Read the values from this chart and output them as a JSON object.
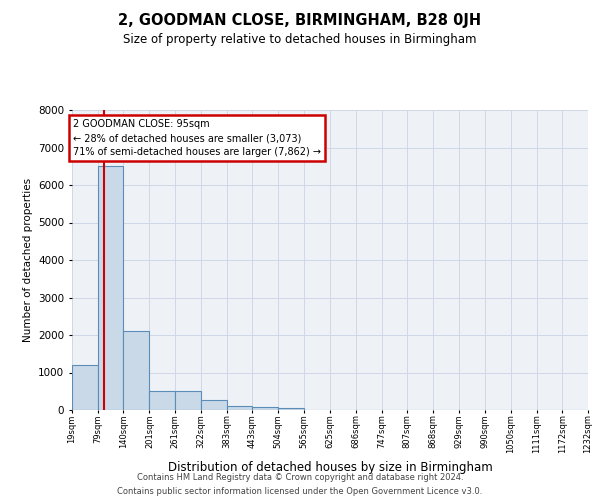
{
  "title": "2, GOODMAN CLOSE, BIRMINGHAM, B28 0JH",
  "subtitle": "Size of property relative to detached houses in Birmingham",
  "xlabel": "Distribution of detached houses by size in Birmingham",
  "ylabel": "Number of detached properties",
  "annotation_title": "2 GOODMAN CLOSE: 95sqm",
  "annotation_line1": "← 28% of detached houses are smaller (3,073)",
  "annotation_line2": "71% of semi-detached houses are larger (7,862) →",
  "property_size": 95,
  "footer_line1": "Contains HM Land Registry data © Crown copyright and database right 2024.",
  "footer_line2": "Contains public sector information licensed under the Open Government Licence v3.0.",
  "bar_color": "#c9d9e8",
  "bar_edge_color": "#5b8db8",
  "vline_color": "#cc0000",
  "annotation_box_color": "#cc0000",
  "grid_color": "#d0d8e8",
  "background_color": "#eef2f7",
  "ylim": [
    0,
    8000
  ],
  "yticks": [
    0,
    1000,
    2000,
    3000,
    4000,
    5000,
    6000,
    7000,
    8000
  ],
  "bin_edges": [
    19,
    79,
    140,
    201,
    261,
    322,
    383,
    443,
    504,
    565,
    625,
    686,
    747,
    807,
    868,
    929,
    990,
    1050,
    1111,
    1172,
    1232
  ],
  "bin_labels": [
    "19sqm",
    "79sqm",
    "140sqm",
    "201sqm",
    "261sqm",
    "322sqm",
    "383sqm",
    "443sqm",
    "504sqm",
    "565sqm",
    "625sqm",
    "686sqm",
    "747sqm",
    "807sqm",
    "868sqm",
    "929sqm",
    "990sqm",
    "1050sqm",
    "1111sqm",
    "1172sqm",
    "1232sqm"
  ],
  "bar_heights": [
    1200,
    6500,
    2100,
    500,
    500,
    270,
    120,
    85,
    65,
    0,
    0,
    0,
    0,
    0,
    0,
    0,
    0,
    0,
    0,
    0
  ]
}
